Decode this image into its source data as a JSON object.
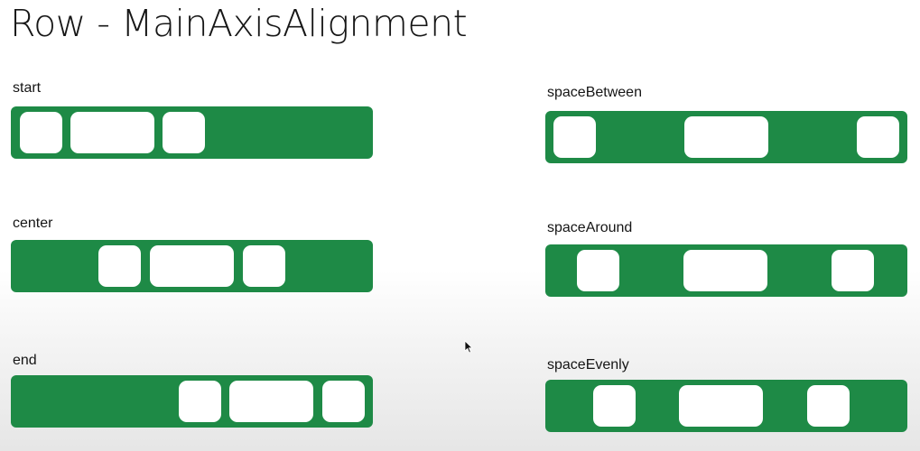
{
  "title": "Row - MainAxisAlignment",
  "labels": {
    "start": "start",
    "center": "center",
    "end": "end",
    "space_between": "spaceBetween",
    "space_around": "spaceAround",
    "space_evenly": "spaceEvenly"
  },
  "colors": {
    "row_green": "#1e8a46",
    "child_box": "#ffffff"
  },
  "icons": {
    "cursor": "mouse-pointer-icon"
  }
}
